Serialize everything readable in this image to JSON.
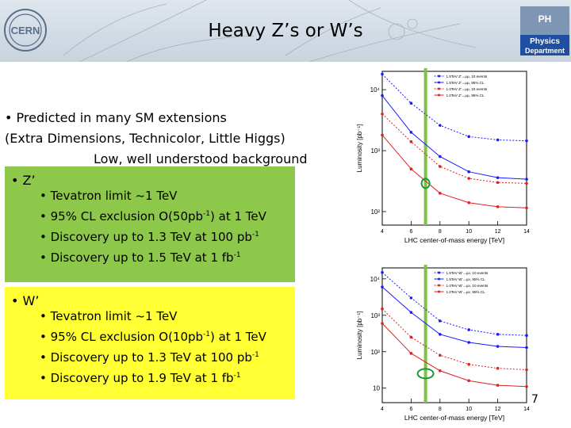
{
  "title": "Heavy Z’s or W’s",
  "intro": {
    "line1": "• Predicted in many SM extensions",
    "line2": "(Extra Dimensions,  Technicolor, Little Higgs)",
    "line3": "Low, well understood background"
  },
  "z_box": {
    "heading": "• Z’",
    "items": [
      {
        "text": "• Tevatron limit   ~1 TeV",
        "sup": "",
        "tail": ""
      },
      {
        "text": "• 95% CL exclusion O(50pb",
        "sup": "-1",
        "tail": ") at 1 TeV"
      },
      {
        "text": "• Discovery up to 1.3 TeV at 100 pb",
        "sup": "-1",
        "tail": ""
      },
      {
        "text": "• Discovery up to 1.5 TeV at 1 fb",
        "sup": "-1",
        "tail": ""
      }
    ],
    "color": "#8dc84a"
  },
  "w_box": {
    "heading": "• W’",
    "items": [
      {
        "text": "• Tevatron limit  ~1 TeV",
        "sup": "",
        "tail": ""
      },
      {
        "text": "• 95% CL exclusion O(10pb",
        "sup": "-1",
        "tail": ") at 1 TeV"
      },
      {
        "text": "• Discovery up to 1.3 TeV at 100 pb",
        "sup": "-1",
        "tail": ""
      },
      {
        "text": "• Discovery up to 1.9 TeV at 1 fb",
        "sup": "-1",
        "tail": ""
      }
    ],
    "color": "#ffff33"
  },
  "logos": {
    "cern": "CERN",
    "ph_line1": "PH",
    "ph_line2": "Physics",
    "ph_line3": "Department"
  },
  "page_number": "7",
  "chart_data": [
    {
      "type": "line",
      "ylabel": "Luminosity [pb⁻¹]",
      "xlabel": "LHC center-of-mass energy [TeV]",
      "x": [
        4,
        6,
        8,
        10,
        12,
        14
      ],
      "x_ticks": [
        "4",
        "6",
        "8",
        "10",
        "12",
        "14"
      ],
      "y_ticks": [
        "10²",
        "10³",
        "10⁴"
      ],
      "ylim": [
        60,
        20000
      ],
      "log_y": true,
      "vertical_line_at": 7,
      "series": [
        {
          "name": "1.5TeV Z'→μμ, 10 events",
          "style": "dotted",
          "color": "#1a1aff",
          "values": [
            18000,
            6000,
            2600,
            1700,
            1500,
            1450
          ]
        },
        {
          "name": "1.5TeV Z'→μμ, 95% CL",
          "style": "solid",
          "color": "#1a1aff",
          "values": [
            8000,
            2000,
            800,
            450,
            360,
            340
          ]
        },
        {
          "name": "1.0TeV Z'→μμ, 10 events",
          "style": "dotted",
          "color": "#e02020",
          "values": [
            4000,
            1400,
            550,
            350,
            300,
            290
          ]
        },
        {
          "name": "1.0TeV Z'→μμ, 95% CL",
          "style": "solid",
          "color": "#e02020",
          "values": [
            1800,
            500,
            200,
            140,
            120,
            115
          ]
        }
      ],
      "legend_position": "top-right"
    },
    {
      "type": "line",
      "ylabel": "Luminosity [pb⁻¹]",
      "xlabel": "LHC center-of-mass energy [TeV]",
      "x": [
        4,
        6,
        8,
        10,
        12,
        14
      ],
      "x_ticks": [
        "4",
        "6",
        "8",
        "10",
        "12",
        "14"
      ],
      "y_ticks": [
        "10",
        "10²",
        "10³",
        "10⁴"
      ],
      "ylim": [
        4,
        20000
      ],
      "log_y": true,
      "vertical_line_at": 7,
      "series": [
        {
          "name": "1.5TeV W'→μν, 10 events",
          "style": "dotted",
          "color": "#1a1aff",
          "values": [
            15000,
            3000,
            700,
            400,
            300,
            280
          ]
        },
        {
          "name": "1.5TeV W'→μν, 95% CL",
          "style": "solid",
          "color": "#1a1aff",
          "values": [
            6000,
            1200,
            300,
            180,
            140,
            130
          ]
        },
        {
          "name": "1.0TeV W'→μν, 10 events",
          "style": "dotted",
          "color": "#e02020",
          "values": [
            1500,
            250,
            80,
            45,
            35,
            32
          ]
        },
        {
          "name": "1.0TeV W'→μν, 95% CL",
          "style": "solid",
          "color": "#e02020",
          "values": [
            600,
            90,
            30,
            16,
            12,
            11
          ]
        }
      ],
      "legend_position": "top-right"
    }
  ]
}
